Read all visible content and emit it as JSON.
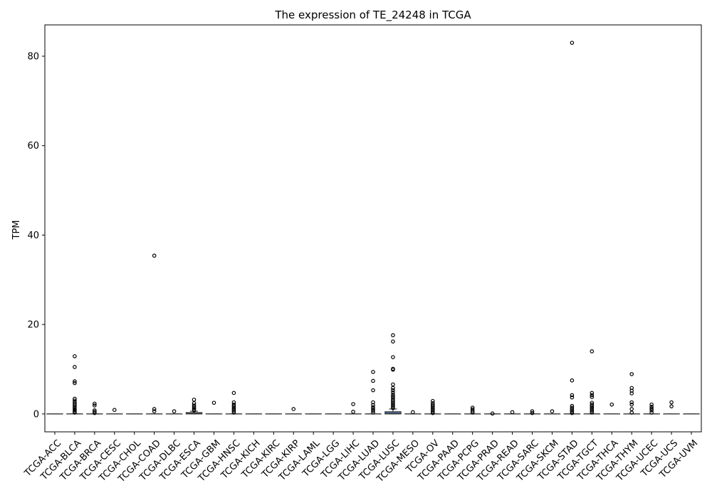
{
  "chart_data": {
    "type": "box",
    "title": "The expression of TE_24248 in TCGA",
    "xlabel": "",
    "ylabel": "TPM",
    "ylim": [
      -4,
      87
    ],
    "yticks": [
      0,
      20,
      40,
      60,
      80
    ],
    "grid": false,
    "box_color": "#4c72b0",
    "categories": [
      "TCGA-ACC",
      "TCGA-BLCA",
      "TCGA-BRCA",
      "TCGA-CESC",
      "TCGA-CHOL",
      "TCGA-COAD",
      "TCGA-DLBC",
      "TCGA-ESCA",
      "TCGA-GBM",
      "TCGA-HNSC",
      "TCGA-KICH",
      "TCGA-KIRC",
      "TCGA-KIRP",
      "TCGA-LAML",
      "TCGA-LGG",
      "TCGA-LIHC",
      "TCGA-LUAD",
      "TCGA-LUSC",
      "TCGA-MESO",
      "TCGA-OV",
      "TCGA-PAAD",
      "TCGA-PCPG",
      "TCGA-PRAD",
      "TCGA-READ",
      "TCGA-SARC",
      "TCGA-SKCM",
      "TCGA-STAD",
      "TCGA-TGCT",
      "TCGA-THCA",
      "TCGA-THYM",
      "TCGA-UCEC",
      "TCGA-UCS",
      "TCGA-UVM"
    ],
    "boxes": [
      {
        "q1": 0,
        "median": 0,
        "q3": 0,
        "whislo": 0,
        "whishi": 0,
        "outliers": []
      },
      {
        "q1": 0,
        "median": 0,
        "q3": 0,
        "whislo": 0,
        "whishi": 0,
        "outliers": [
          0.3,
          0.5,
          0.8,
          1.0,
          1.3,
          1.6,
          1.9,
          2.2,
          2.6,
          3.0,
          3.4,
          6.9,
          7.3,
          10.5,
          12.9
        ]
      },
      {
        "q1": 0,
        "median": 0,
        "q3": 0,
        "whislo": 0,
        "whishi": 0,
        "outliers": [
          0.2,
          0.5,
          0.8,
          1.9,
          2.3
        ]
      },
      {
        "q1": 0,
        "median": 0,
        "q3": 0,
        "whislo": 0,
        "whishi": 0,
        "outliers": [
          0.9
        ]
      },
      {
        "q1": 0,
        "median": 0,
        "q3": 0,
        "whislo": 0,
        "whishi": 0,
        "outliers": []
      },
      {
        "q1": 0,
        "median": 0,
        "q3": 0,
        "whislo": 0,
        "whishi": 0,
        "outliers": [
          0.6,
          1.1,
          35.4
        ]
      },
      {
        "q1": 0,
        "median": 0,
        "q3": 0,
        "whislo": 0,
        "whishi": 0,
        "outliers": [
          0.6
        ]
      },
      {
        "q1": 0,
        "median": 0.1,
        "q3": 0.3,
        "whislo": 0,
        "whishi": 0.6,
        "outliers": [
          0.8,
          1.0,
          1.3,
          1.6,
          1.9,
          2.4,
          3.2
        ]
      },
      {
        "q1": 0,
        "median": 0,
        "q3": 0,
        "whislo": 0,
        "whishi": 0,
        "outliers": [
          2.5
        ]
      },
      {
        "q1": 0,
        "median": 0,
        "q3": 0,
        "whislo": 0,
        "whishi": 0,
        "outliers": [
          0.3,
          0.6,
          0.9,
          1.2,
          1.5,
          1.8,
          2.1,
          2.6,
          4.7
        ]
      },
      {
        "q1": 0,
        "median": 0,
        "q3": 0,
        "whislo": 0,
        "whishi": 0,
        "outliers": []
      },
      {
        "q1": 0,
        "median": 0,
        "q3": 0,
        "whislo": 0,
        "whishi": 0,
        "outliers": []
      },
      {
        "q1": 0,
        "median": 0,
        "q3": 0,
        "whislo": 0,
        "whishi": 0,
        "outliers": [
          1.1
        ]
      },
      {
        "q1": 0,
        "median": 0,
        "q3": 0,
        "whislo": 0,
        "whishi": 0,
        "outliers": []
      },
      {
        "q1": 0,
        "median": 0,
        "q3": 0,
        "whislo": 0,
        "whishi": 0,
        "outliers": []
      },
      {
        "q1": 0,
        "median": 0,
        "q3": 0,
        "whislo": 0,
        "whishi": 0,
        "outliers": [
          0.5,
          2.2
        ]
      },
      {
        "q1": 0,
        "median": 0,
        "q3": 0,
        "whislo": 0,
        "whishi": 0,
        "outliers": [
          0.3,
          0.7,
          1.1,
          1.5,
          2.0,
          2.6,
          5.3,
          7.4,
          9.4
        ]
      },
      {
        "q1": 0,
        "median": 0.1,
        "q3": 0.5,
        "whislo": 0,
        "whishi": 1.1,
        "outliers": [
          1.3,
          1.6,
          1.9,
          2.2,
          2.5,
          2.8,
          3.1,
          3.5,
          3.9,
          4.3,
          4.8,
          5.3,
          5.8,
          6.6,
          9.9,
          10.1,
          12.7,
          16.2,
          17.6
        ]
      },
      {
        "q1": 0,
        "median": 0,
        "q3": 0,
        "whislo": 0,
        "whishi": 0,
        "outliers": [
          0.4
        ]
      },
      {
        "q1": 0,
        "median": 0,
        "q3": 0,
        "whislo": 0,
        "whishi": 0,
        "outliers": [
          0.2,
          0.5,
          0.8,
          1.1,
          1.4,
          1.7,
          2.0,
          2.4,
          2.9
        ]
      },
      {
        "q1": 0,
        "median": 0,
        "q3": 0,
        "whislo": 0,
        "whishi": 0,
        "outliers": []
      },
      {
        "q1": 0,
        "median": 0,
        "q3": 0,
        "whislo": 0,
        "whishi": 0,
        "outliers": [
          0.3,
          0.6,
          1.0,
          1.4
        ]
      },
      {
        "q1": 0,
        "median": 0,
        "q3": 0,
        "whislo": 0,
        "whishi": 0,
        "outliers": [
          0.1
        ]
      },
      {
        "q1": 0,
        "median": 0,
        "q3": 0,
        "whislo": 0,
        "whishi": 0,
        "outliers": [
          0.4
        ]
      },
      {
        "q1": 0,
        "median": 0,
        "q3": 0,
        "whislo": 0,
        "whishi": 0,
        "outliers": [
          0.2,
          0.6
        ]
      },
      {
        "q1": 0,
        "median": 0,
        "q3": 0,
        "whislo": 0,
        "whishi": 0,
        "outliers": [
          0.6
        ]
      },
      {
        "q1": 0,
        "median": 0,
        "q3": 0,
        "whislo": 0,
        "whishi": 0,
        "outliers": [
          0.2,
          0.5,
          0.8,
          1.1,
          1.4,
          1.8,
          3.7,
          4.2,
          7.5,
          83.0
        ]
      },
      {
        "q1": 0,
        "median": 0,
        "q3": 0,
        "whislo": 0,
        "whishi": 0,
        "outliers": [
          0.3,
          0.6,
          0.9,
          1.2,
          1.5,
          1.8,
          2.1,
          2.5,
          3.8,
          4.2,
          4.7,
          14.0
        ]
      },
      {
        "q1": 0,
        "median": 0,
        "q3": 0,
        "whislo": 0,
        "whishi": 0,
        "outliers": [
          2.1
        ]
      },
      {
        "q1": 0,
        "median": 0,
        "q3": 0,
        "whislo": 0,
        "whishi": 0,
        "outliers": [
          0.3,
          1.1,
          2.1,
          2.6,
          4.6,
          5.2,
          5.8,
          8.9
        ]
      },
      {
        "q1": 0,
        "median": 0,
        "q3": 0,
        "whislo": 0,
        "whishi": 0,
        "outliers": [
          0.3,
          0.8,
          1.2,
          1.6,
          2.1
        ]
      },
      {
        "q1": 0,
        "median": 0,
        "q3": 0,
        "whislo": 0,
        "whishi": 0,
        "outliers": [
          1.7,
          2.6
        ]
      },
      {
        "q1": 0,
        "median": 0,
        "q3": 0,
        "whislo": 0,
        "whishi": 0,
        "outliers": []
      }
    ]
  }
}
